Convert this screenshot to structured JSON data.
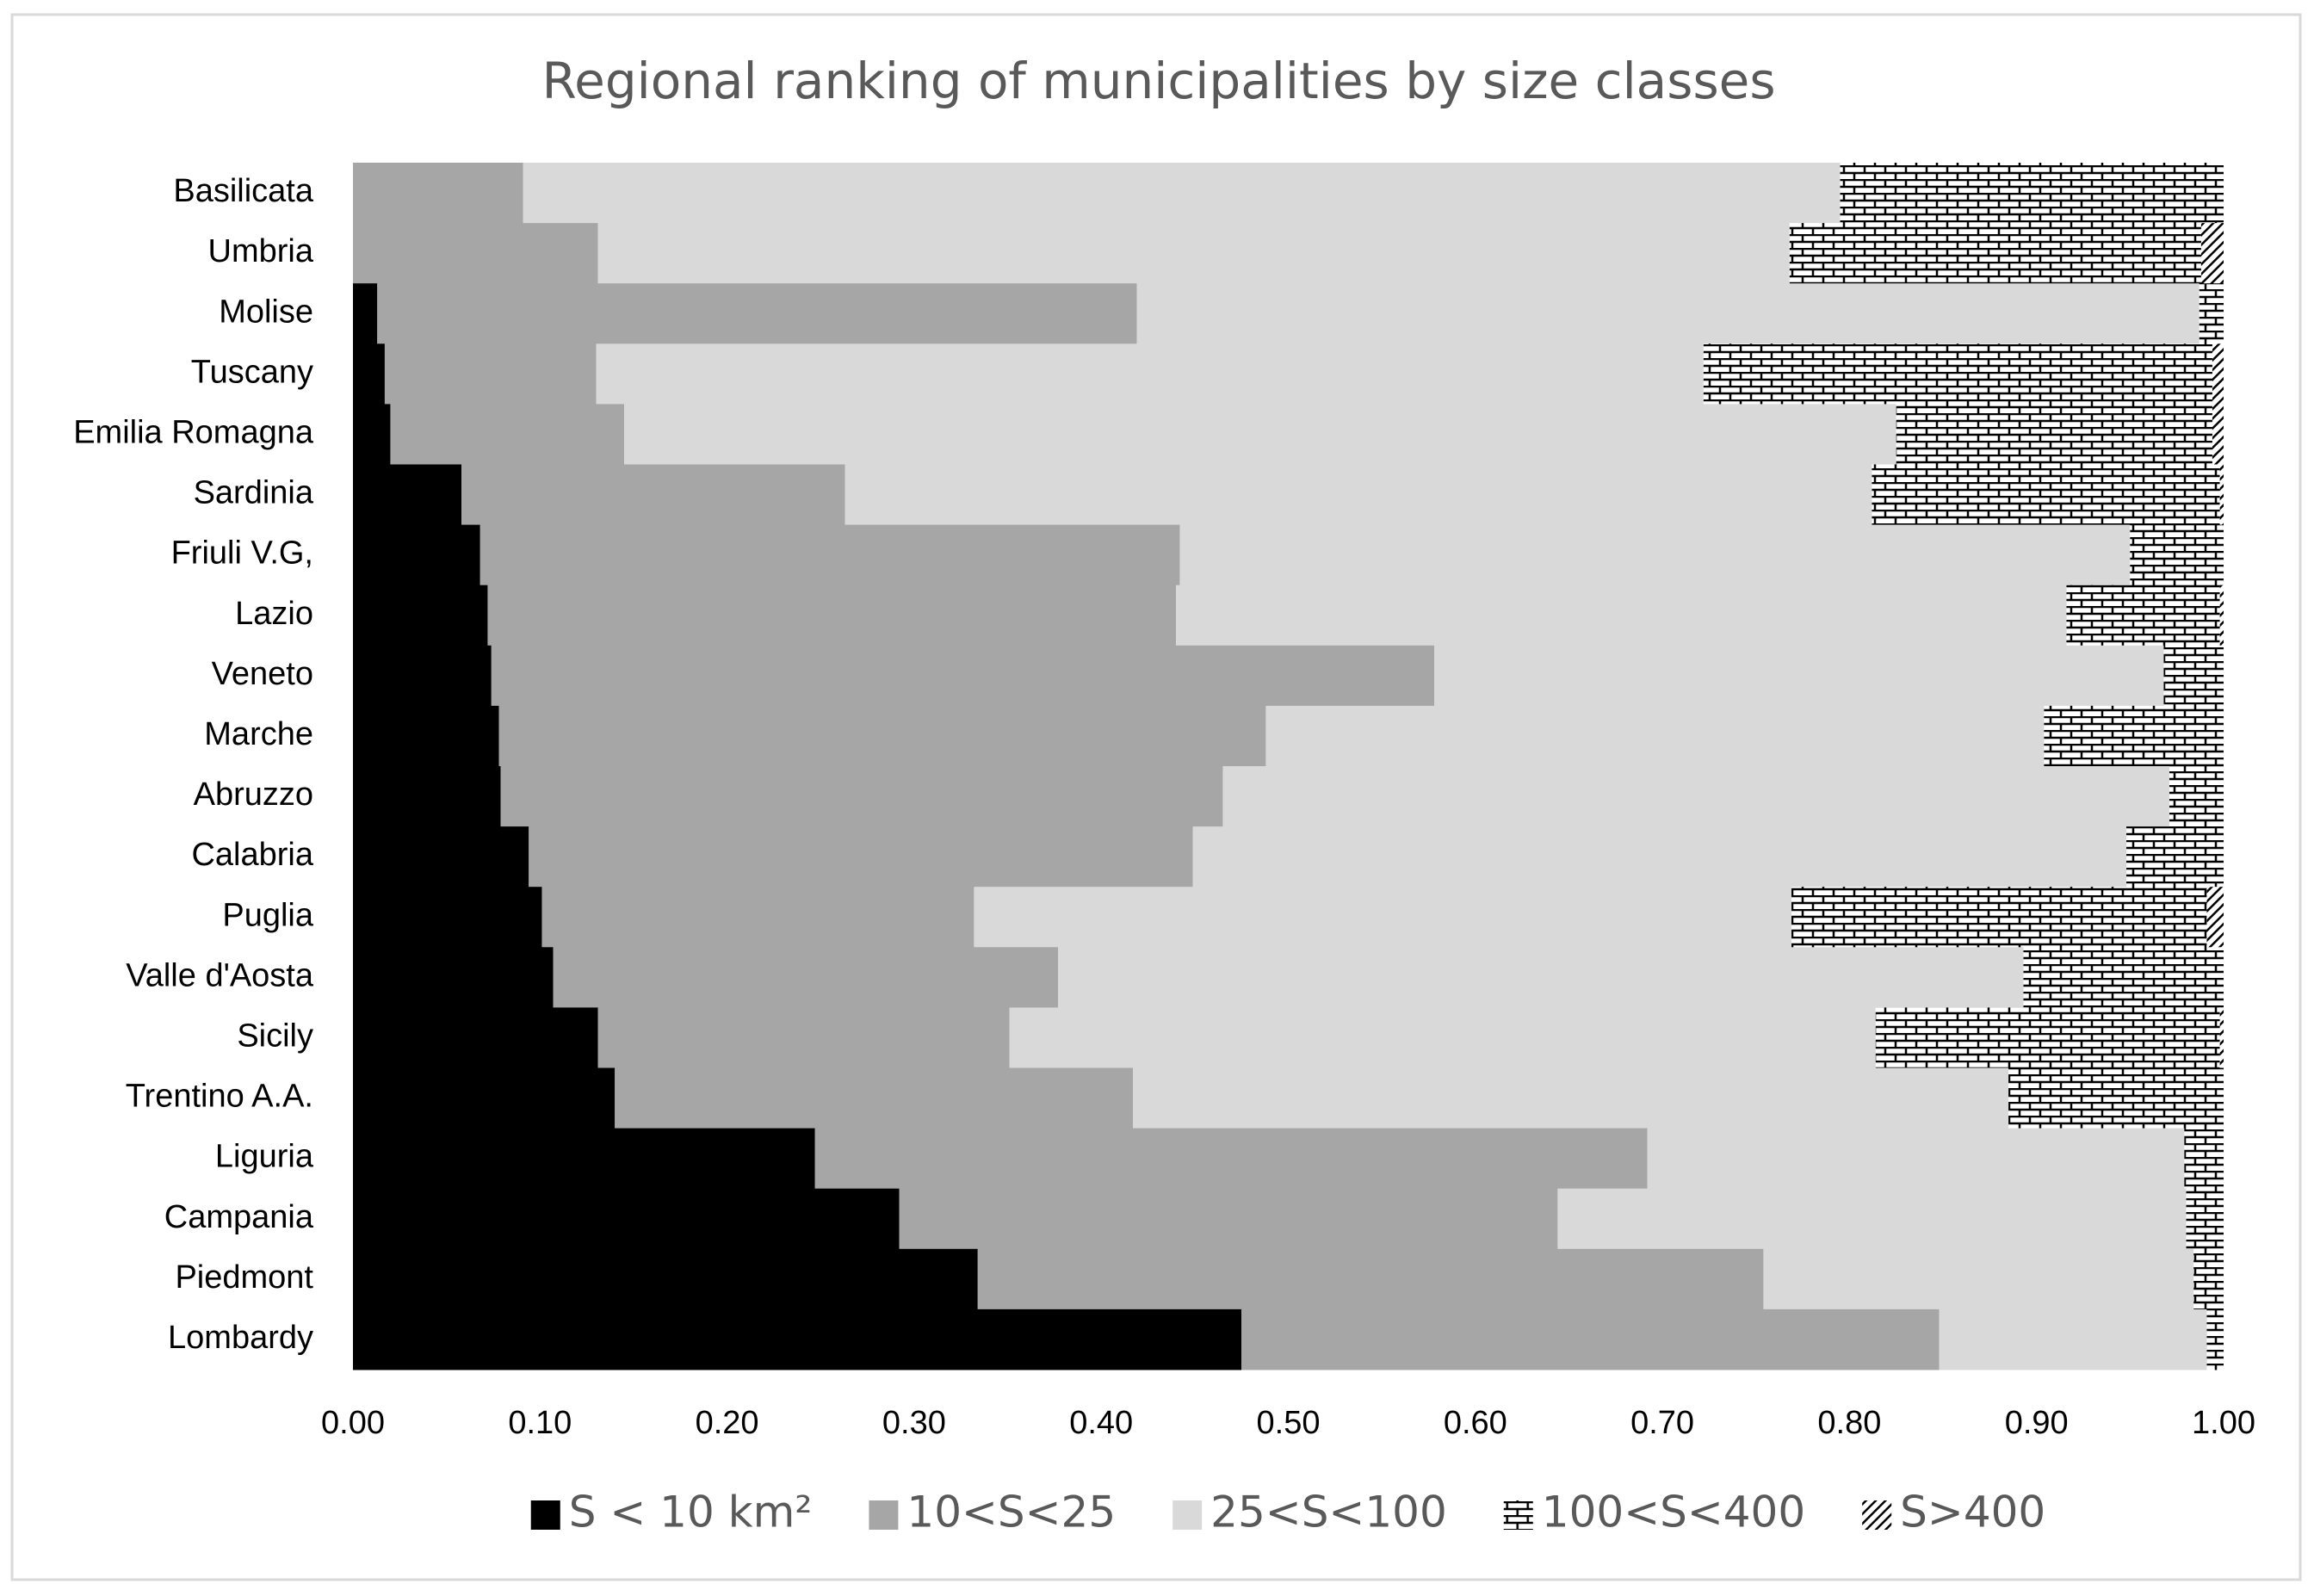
{
  "chart_data": {
    "type": "stacked_bar_horizontal",
    "title": "Regional ranking of municipalities by size classes",
    "categories": [
      "Basilicata",
      "Umbria",
      "Molise",
      "Tuscany",
      "Emilia Romagna",
      "Sardinia",
      "Friuli V.G,",
      "Lazio",
      "Veneto",
      "Marche",
      "Abruzzo",
      "Calabria",
      "Puglia",
      "Valle d'Aosta",
      "Sicily",
      "Trentino A.A.",
      "Liguria",
      "Campania",
      "Piedmont",
      "Lombardy"
    ],
    "series": [
      {
        "name": "S < 10 km²",
        "color": "#000000",
        "values": [
          0,
          0,
          0.013,
          0.017,
          0.02,
          0.058,
          0.068,
          0.072,
          0.074,
          0.078,
          0.079,
          0.094,
          0.101,
          0.107,
          0.131,
          0.14,
          0.247,
          0.292,
          0.334,
          0.475
        ]
      },
      {
        "name": "10<S<25",
        "color": "#a6a6a6",
        "values": [
          0.091,
          0.131,
          0.406,
          0.113,
          0.125,
          0.205,
          0.374,
          0.368,
          0.504,
          0.41,
          0.386,
          0.355,
          0.231,
          0.27,
          0.22,
          0.277,
          0.445,
          0.352,
          0.42,
          0.373
        ]
      },
      {
        "name": "25<S<100",
        "color": "#d9d9d9",
        "values": [
          0.704,
          0.637,
          0.568,
          0.592,
          0.68,
          0.549,
          0.508,
          0.476,
          0.39,
          0.416,
          0.506,
          0.499,
          0.437,
          0.516,
          0.463,
          0.468,
          0.287,
          0.336,
          0.23,
          0.143
        ]
      },
      {
        "name": "100<S<400",
        "color": "#000000",
        "pattern": "brick",
        "values": [
          0.205,
          0.22,
          0.013,
          0.272,
          0.169,
          0.186,
          0.05,
          0.082,
          0.032,
          0.096,
          0.029,
          0.052,
          0.222,
          0.107,
          0.184,
          0.115,
          0.021,
          0.02,
          0.016,
          0.009
        ]
      },
      {
        "name": "S>400",
        "color": "#000000",
        "pattern": "diagonal",
        "values": [
          0,
          0.012,
          0,
          0.006,
          0.006,
          0.002,
          0,
          0.002,
          0,
          0,
          0,
          0,
          0.009,
          0,
          0.002,
          0,
          0,
          0,
          0,
          0
        ]
      }
    ],
    "xlim": [
      0,
      1
    ],
    "xticks": [
      {
        "value": 0,
        "label": "0.00"
      },
      {
        "value": 0.1,
        "label": "0.10"
      },
      {
        "value": 0.2,
        "label": "0.20"
      },
      {
        "value": 0.3,
        "label": "0.30"
      },
      {
        "value": 0.4,
        "label": "0.40"
      },
      {
        "value": 0.5,
        "label": "0.50"
      },
      {
        "value": 0.6,
        "label": "0.60"
      },
      {
        "value": 0.7,
        "label": "0.70"
      },
      {
        "value": 0.8,
        "label": "0.80"
      },
      {
        "value": 0.9,
        "label": "0.90"
      },
      {
        "value": 1,
        "label": "1.00"
      }
    ],
    "legend": "bottom"
  }
}
